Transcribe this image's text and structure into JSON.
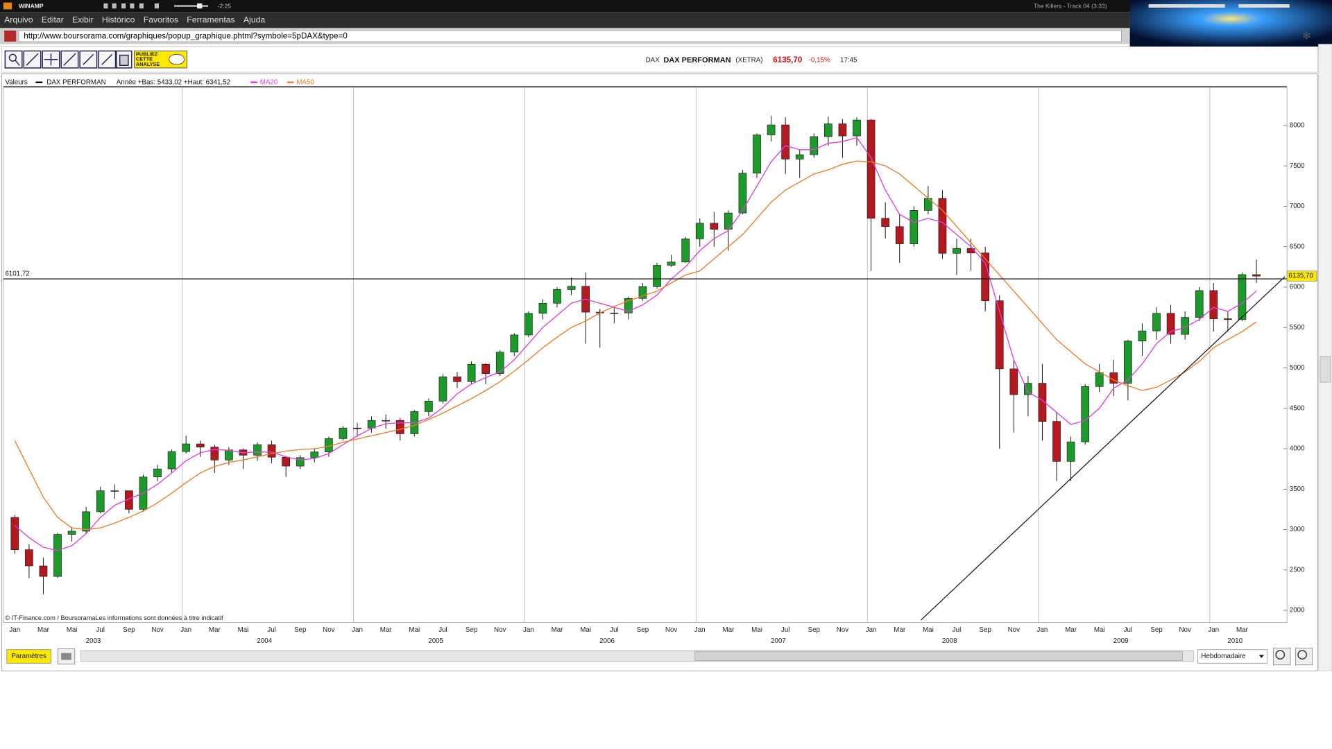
{
  "window": {
    "app": "WINAMP",
    "time": "-2:25",
    "track": "The Killers - Track 04 (3:33)"
  },
  "menu": [
    "Arquivo",
    "Editar",
    "Exibir",
    "Histórico",
    "Favoritos",
    "Ferramentas",
    "Ajuda"
  ],
  "url": "http://www.boursorama.com/graphiques/popup_graphique.phtml?symbole=5pDAX&type=0",
  "toolbar": {
    "publish_button": [
      "PUBLIEZ",
      "CETTE",
      "ANALYSE"
    ]
  },
  "header": {
    "index": "DAX",
    "name": "DAX PERFORMAN",
    "market": "(XETRA)",
    "price": "6135,70",
    "change": "-0,15%",
    "time": "17:45"
  },
  "legend": {
    "label": "Valeurs",
    "series": "DAX PERFORMAN",
    "range": "Année +Bas: 5433,02 +Haut: 6341,52",
    "ma20": "MA20",
    "ma50": "MA50"
  },
  "chart_data": {
    "type": "candlestick",
    "categories": [
      "Jan",
      null,
      "Mar",
      null,
      "Mai",
      null,
      "Jul",
      null,
      "Sep",
      null,
      "Nov",
      null,
      "Jan",
      null,
      "Mar",
      null,
      "Mai",
      null,
      "Jul",
      null,
      "Sep",
      null,
      "Nov",
      null,
      "Jan",
      null,
      "Mar",
      null,
      "Mai",
      null,
      "Jul",
      null,
      "Sep",
      null,
      "Nov",
      null,
      "Jan",
      null,
      "Mar",
      null,
      "Mai",
      null,
      "Jul",
      null,
      "Sep",
      null,
      "Nov",
      null,
      "Jan",
      null,
      "Mar",
      null,
      "Mai",
      null,
      "Jul",
      null,
      "Sep",
      null,
      "Nov",
      null,
      "Jan",
      null,
      "Mar",
      null,
      "Mai",
      null,
      "Jul",
      null,
      "Sep",
      null,
      "Nov",
      null,
      "Jan",
      null,
      "Mar",
      null,
      "Mai",
      null,
      "Jul",
      null,
      "Sep",
      null,
      "Nov",
      null,
      "Jan",
      null,
      "Mar",
      null
    ],
    "years": [
      "2003",
      "2004",
      "2005",
      "2006",
      "2007",
      "2008",
      "2009",
      "2010"
    ],
    "open": [
      3150,
      2750,
      2550,
      2420,
      2940,
      2980,
      3220,
      3480,
      3480,
      3250,
      3650,
      3750,
      3965,
      4060,
      4020,
      3860,
      3985,
      3920,
      4050,
      3895,
      3785,
      3890,
      3960,
      4125,
      4256,
      4255,
      4350,
      4350,
      4185,
      4460,
      4590,
      4890,
      4830,
      5045,
      4930,
      5195,
      5408,
      5675,
      5800,
      5970,
      6010,
      5690,
      5680,
      5680,
      5860,
      6005,
      6270,
      6310,
      6597,
      6790,
      6715,
      6917,
      7409,
      7883,
      8007,
      7584,
      7638,
      7862,
      8020,
      7870,
      8067,
      6851,
      6748,
      6535,
      6949,
      7097,
      6418,
      6479,
      6422,
      5831,
      4988,
      4669,
      4810,
      4338,
      3843,
      4085,
      4770,
      4940,
      4809,
      5332,
      5458,
      5675,
      5415,
      5625,
      5957,
      5608,
      5598,
      6154
    ],
    "high": [
      3180,
      2820,
      2650,
      2960,
      3030,
      3280,
      3530,
      3560,
      3480,
      3680,
      3800,
      3990,
      4160,
      4100,
      4050,
      4020,
      4000,
      4080,
      4100,
      3900,
      3920,
      4000,
      4150,
      4280,
      4320,
      4400,
      4420,
      4380,
      4480,
      4620,
      4920,
      4950,
      5080,
      5060,
      5220,
      5430,
      5700,
      5850,
      6000,
      6120,
      6180,
      5730,
      5750,
      5880,
      6050,
      6300,
      6400,
      6620,
      6850,
      6930,
      6950,
      7450,
      7900,
      8120,
      8100,
      7700,
      7900,
      8110,
      8080,
      8100,
      8080,
      7050,
      6900,
      7000,
      7250,
      7200,
      6600,
      6600,
      6500,
      5900,
      5100,
      4900,
      5050,
      4450,
      4150,
      4800,
      5050,
      5100,
      5350,
      5550,
      5750,
      5780,
      5700,
      6000,
      6050,
      5700,
      6180,
      6340
    ],
    "low": [
      2700,
      2400,
      2200,
      2400,
      2850,
      2950,
      3200,
      3380,
      3200,
      3220,
      3600,
      3700,
      3940,
      3900,
      3700,
      3800,
      3750,
      3850,
      3820,
      3650,
      3750,
      3830,
      3900,
      4100,
      4150,
      4200,
      4250,
      4100,
      4150,
      4400,
      4560,
      4750,
      4800,
      4800,
      4900,
      5150,
      5380,
      5600,
      5750,
      5900,
      5300,
      5250,
      5550,
      5600,
      5830,
      5980,
      6250,
      6300,
      6500,
      6500,
      6450,
      6900,
      7350,
      7800,
      7400,
      7350,
      7600,
      7750,
      7600,
      7750,
      6200,
      6600,
      6300,
      6500,
      6900,
      6350,
      6150,
      6200,
      5700,
      4000,
      4200,
      4400,
      4100,
      3600,
      3600,
      4050,
      4700,
      4650,
      4600,
      5150,
      5350,
      5300,
      5350,
      5580,
      5450,
      5450,
      5580,
      6050
    ],
    "close": [
      2750,
      2550,
      2420,
      2940,
      2980,
      3220,
      3480,
      3480,
      3250,
      3650,
      3750,
      3965,
      4060,
      4020,
      3860,
      3985,
      3920,
      4050,
      3895,
      3785,
      3890,
      3960,
      4125,
      4256,
      4255,
      4350,
      4350,
      4185,
      4460,
      4590,
      4890,
      4830,
      5045,
      4930,
      5195,
      5408,
      5675,
      5800,
      5970,
      6010,
      5690,
      5680,
      5680,
      5860,
      6005,
      6270,
      6310,
      6597,
      6790,
      6715,
      6917,
      7409,
      7883,
      8007,
      7584,
      7638,
      7862,
      8020,
      7870,
      8067,
      6851,
      6748,
      6535,
      6949,
      7097,
      6418,
      6479,
      6422,
      5831,
      4988,
      4669,
      4810,
      4338,
      3843,
      4085,
      4770,
      4940,
      4809,
      5332,
      5458,
      5675,
      5415,
      5625,
      5957,
      5608,
      5598,
      6154,
      6136
    ],
    "up_color": "#1c9a2a",
    "down_color": "#b3191f",
    "series": [
      {
        "name": "MA20",
        "color": "#e23be0",
        "values": [
          3050,
          2900,
          2780,
          2740,
          2800,
          2950,
          3150,
          3300,
          3380,
          3450,
          3560,
          3700,
          3850,
          3950,
          3990,
          3980,
          3950,
          3960,
          3960,
          3900,
          3860,
          3880,
          3940,
          4050,
          4160,
          4250,
          4310,
          4320,
          4320,
          4380,
          4510,
          4680,
          4800,
          4880,
          4950,
          5100,
          5300,
          5500,
          5650,
          5800,
          5850,
          5800,
          5750,
          5700,
          5780,
          5900,
          6100,
          6250,
          6450,
          6600,
          6700,
          6950,
          7250,
          7550,
          7750,
          7700,
          7700,
          7780,
          7800,
          7850,
          7600,
          7200,
          6900,
          6800,
          6850,
          6800,
          6650,
          6500,
          6300,
          5700,
          5100,
          4700,
          4600,
          4450,
          4300,
          4350,
          4500,
          4750,
          4850,
          5050,
          5300,
          5450,
          5500,
          5600,
          5750,
          5700,
          5800,
          5950
        ]
      },
      {
        "name": "MA50",
        "color": "#f07a22",
        "values": [
          4100,
          3750,
          3400,
          3150,
          3020,
          3000,
          3020,
          3080,
          3150,
          3230,
          3330,
          3450,
          3580,
          3700,
          3780,
          3830,
          3860,
          3900,
          3940,
          3970,
          3990,
          4000,
          4030,
          4080,
          4120,
          4160,
          4200,
          4240,
          4290,
          4360,
          4440,
          4530,
          4620,
          4720,
          4830,
          4960,
          5100,
          5250,
          5380,
          5500,
          5580,
          5680,
          5760,
          5830,
          5890,
          5950,
          6050,
          6150,
          6200,
          6350,
          6500,
          6650,
          6850,
          7050,
          7200,
          7300,
          7400,
          7450,
          7520,
          7560,
          7550,
          7500,
          7400,
          7250,
          7100,
          6950,
          6750,
          6550,
          6350,
          6150,
          5950,
          5750,
          5550,
          5350,
          5200,
          5050,
          4950,
          4850,
          4780,
          4720,
          4760,
          4850,
          4950,
          5080,
          5250,
          5350,
          5450,
          5570
        ]
      }
    ],
    "trendline": {
      "x": [
        64.0,
        89.5
      ],
      "values": [
        1880,
        6130
      ]
    },
    "hline": {
      "value": 6101.72,
      "label": "6101,72"
    },
    "last": {
      "value": 6135.7,
      "label": "6135,70"
    },
    "ylim": [
      1850,
      8470
    ],
    "yticks": [
      2000,
      2500,
      3000,
      3500,
      4000,
      4500,
      5000,
      5500,
      6000,
      6500,
      7000,
      7500,
      8000
    ],
    "credit": "© IT-Finance.com / BoursoramaLes informations sont données à titre indicatif"
  },
  "footer": {
    "params_button": "Paramètres",
    "period": "Hebdomadaire"
  }
}
